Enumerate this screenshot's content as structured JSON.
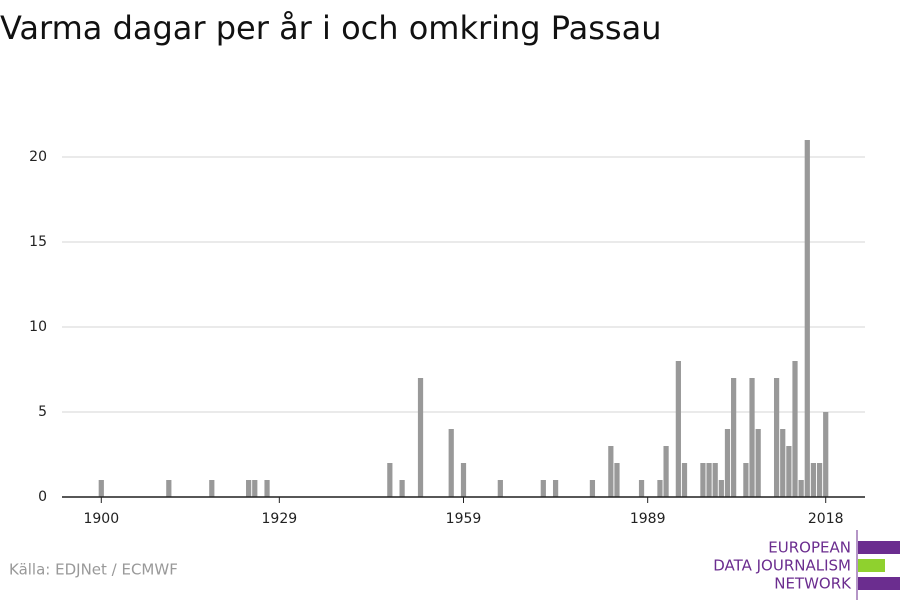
{
  "chart_data": {
    "type": "bar",
    "title": "Varma dagar per år i och omkring Passau",
    "source": "Källa: EDJNet / ECMWF",
    "x": [
      1900,
      1911,
      1918,
      1924,
      1925,
      1927,
      1947,
      1949,
      1952,
      1957,
      1959,
      1965,
      1972,
      1974,
      1980,
      1983,
      1984,
      1988,
      1991,
      1992,
      1994,
      1995,
      1998,
      1999,
      2000,
      2001,
      2002,
      2003,
      2005,
      2006,
      2007,
      2010,
      2011,
      2012,
      2013,
      2014,
      2015,
      2016,
      2017,
      2018
    ],
    "values": [
      1,
      1,
      1,
      1,
      1,
      1,
      2,
      1,
      7,
      4,
      2,
      1,
      1,
      1,
      1,
      3,
      2,
      1,
      1,
      3,
      8,
      2,
      2,
      2,
      2,
      1,
      4,
      7,
      2,
      7,
      4,
      7,
      4,
      3,
      8,
      1,
      21,
      2,
      2,
      5
    ],
    "color": "#999999",
    "xlim": [
      1893.6,
      2024.4
    ],
    "xticks": [
      1900,
      1929,
      1959,
      1989,
      2018
    ],
    "ylim": [
      0,
      22
    ],
    "yticks": [
      0,
      5,
      10,
      15,
      20
    ],
    "grid": true
  },
  "logo": [
    "EUROPEAN",
    "DATA JOURNALISM",
    "NETWORK"
  ]
}
